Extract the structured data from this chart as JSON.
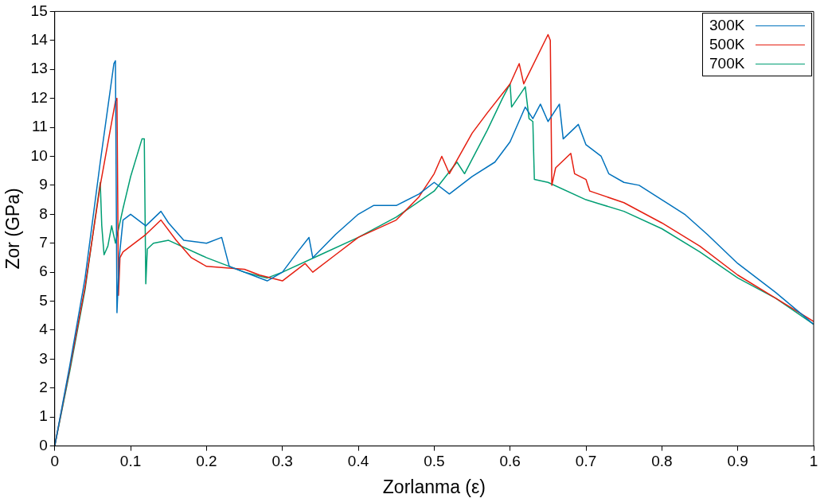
{
  "chart_data": {
    "type": "line",
    "xlabel": "Zorlanma (ε)",
    "ylabel": "Zor (GPa)",
    "xlim": [
      0,
      1
    ],
    "ylim": [
      0,
      15
    ],
    "xticks": [
      0,
      0.1,
      0.2,
      0.3,
      0.4,
      0.5,
      0.6,
      0.7,
      0.8,
      0.9,
      1
    ],
    "yticks": [
      0,
      1,
      2,
      3,
      4,
      5,
      6,
      7,
      8,
      9,
      10,
      11,
      12,
      13,
      14,
      15
    ],
    "grid": false,
    "legend": "top right",
    "marker": "none",
    "line_style": "solid",
    "series": [
      {
        "name": "300K",
        "color": "#0072bd",
        "x": [
          0,
          0.02,
          0.04,
          0.06,
          0.078,
          0.08,
          0.081,
          0.082,
          0.085,
          0.09,
          0.1,
          0.12,
          0.14,
          0.15,
          0.17,
          0.2,
          0.22,
          0.23,
          0.26,
          0.28,
          0.3,
          0.32,
          0.335,
          0.34,
          0.37,
          0.4,
          0.42,
          0.45,
          0.48,
          0.5,
          0.52,
          0.55,
          0.58,
          0.6,
          0.62,
          0.63,
          0.64,
          0.65,
          0.665,
          0.67,
          0.69,
          0.7,
          0.72,
          0.73,
          0.75,
          0.77,
          0.8,
          0.83,
          0.86,
          0.9,
          0.95,
          1
        ],
        "values": [
          0,
          2.8,
          5.8,
          9.8,
          13.2,
          13.3,
          9,
          4.6,
          6.5,
          7.8,
          8,
          7.6,
          8.1,
          7.7,
          7.1,
          7,
          7.2,
          6.2,
          5.9,
          5.7,
          6,
          6.7,
          7.2,
          6.5,
          7.3,
          8,
          8.3,
          8.3,
          8.7,
          9.1,
          8.7,
          9.3,
          9.8,
          10.5,
          11.7,
          11.3,
          11.8,
          11.2,
          11.8,
          10.6,
          11.1,
          10.4,
          10,
          9.4,
          9.1,
          9,
          8.5,
          8,
          7.3,
          6.3,
          5.3,
          4.2
        ]
      },
      {
        "name": "500K",
        "color": "#e51e10",
        "x": [
          0,
          0.02,
          0.04,
          0.06,
          0.08,
          0.082,
          0.084,
          0.086,
          0.09,
          0.1,
          0.12,
          0.14,
          0.16,
          0.18,
          0.2,
          0.25,
          0.27,
          0.3,
          0.33,
          0.34,
          0.37,
          0.4,
          0.45,
          0.48,
          0.5,
          0.51,
          0.52,
          0.55,
          0.57,
          0.6,
          0.612,
          0.618,
          0.65,
          0.653,
          0.655,
          0.66,
          0.68,
          0.685,
          0.7,
          0.705,
          0.75,
          0.8,
          0.85,
          0.9,
          0.95,
          1
        ],
        "values": [
          0,
          2.7,
          5.5,
          9,
          11.9,
          12,
          5.2,
          6.5,
          6.7,
          6.9,
          7.3,
          7.8,
          7.1,
          6.5,
          6.2,
          6.1,
          5.9,
          5.7,
          6.3,
          6,
          6.6,
          7.2,
          7.8,
          8.6,
          9.4,
          10,
          9.4,
          10.8,
          11.5,
          12.5,
          13.2,
          12.5,
          14.2,
          14,
          9,
          9.6,
          10.1,
          9.4,
          9.2,
          8.8,
          8.4,
          7.7,
          6.9,
          5.9,
          5.1,
          4.3
        ]
      },
      {
        "name": "700K",
        "color": "#009e73",
        "x": [
          0,
          0.02,
          0.04,
          0.06,
          0.062,
          0.065,
          0.07,
          0.075,
          0.08,
          0.09,
          0.1,
          0.115,
          0.118,
          0.12,
          0.122,
          0.13,
          0.15,
          0.2,
          0.25,
          0.28,
          0.3,
          0.35,
          0.4,
          0.45,
          0.5,
          0.53,
          0.54,
          0.57,
          0.59,
          0.6,
          0.602,
          0.62,
          0.625,
          0.63,
          0.632,
          0.65,
          0.7,
          0.75,
          0.8,
          0.85,
          0.9,
          0.95,
          1
        ],
        "values": [
          0,
          2.6,
          5.4,
          9.1,
          7.6,
          6.6,
          6.9,
          7.6,
          7,
          8.2,
          9.3,
          10.6,
          10.6,
          5.6,
          6.8,
          7,
          7.1,
          6.5,
          6,
          5.8,
          6,
          6.6,
          7.2,
          7.9,
          8.8,
          9.8,
          9.4,
          10.9,
          12,
          12.5,
          11.7,
          12.4,
          11.3,
          11.2,
          9.2,
          9.1,
          8.5,
          8.1,
          7.5,
          6.7,
          5.8,
          5.1,
          4.2
        ]
      }
    ]
  }
}
